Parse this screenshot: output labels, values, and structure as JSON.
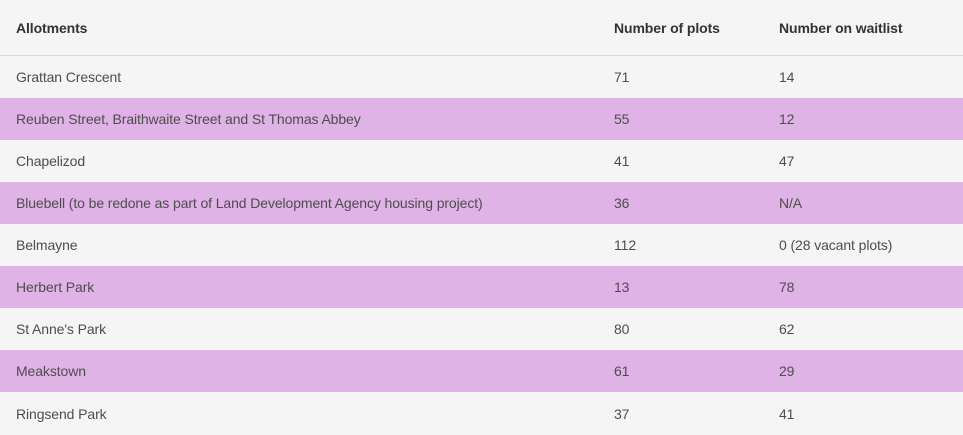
{
  "colors": {
    "highlight_row": "#dfb3e5",
    "background": "#f5f5f6",
    "header_border": "#d8d8d8",
    "body_text": "#4d4d4d",
    "header_text": "#333333"
  },
  "table": {
    "columns": [
      {
        "label": "Allotments"
      },
      {
        "label": "Number of plots"
      },
      {
        "label": "Number on waitlist"
      }
    ],
    "rows": [
      {
        "allotment": "Grattan Crescent",
        "plots": "71",
        "waitlist": "14",
        "highlighted": false
      },
      {
        "allotment": "Reuben Street, Braithwaite Street and St Thomas Abbey",
        "plots": "55",
        "waitlist": "12",
        "highlighted": true
      },
      {
        "allotment": "Chapelizod",
        "plots": "41",
        "waitlist": "47",
        "highlighted": false
      },
      {
        "allotment": "Bluebell (to be redone as part of Land Development Agency housing project)",
        "plots": "36",
        "waitlist": "N/A",
        "highlighted": true
      },
      {
        "allotment": "Belmayne",
        "plots": "112",
        "waitlist": "0 (28 vacant plots)",
        "highlighted": false
      },
      {
        "allotment": "Herbert Park",
        "plots": "13",
        "waitlist": "78",
        "highlighted": true
      },
      {
        "allotment": "St Anne's Park",
        "plots": "80",
        "waitlist": "62",
        "highlighted": false
      },
      {
        "allotment": "Meakstown",
        "plots": "61",
        "waitlist": "29",
        "highlighted": true
      },
      {
        "allotment": "Ringsend Park",
        "plots": "37",
        "waitlist": "41",
        "highlighted": false
      }
    ]
  }
}
